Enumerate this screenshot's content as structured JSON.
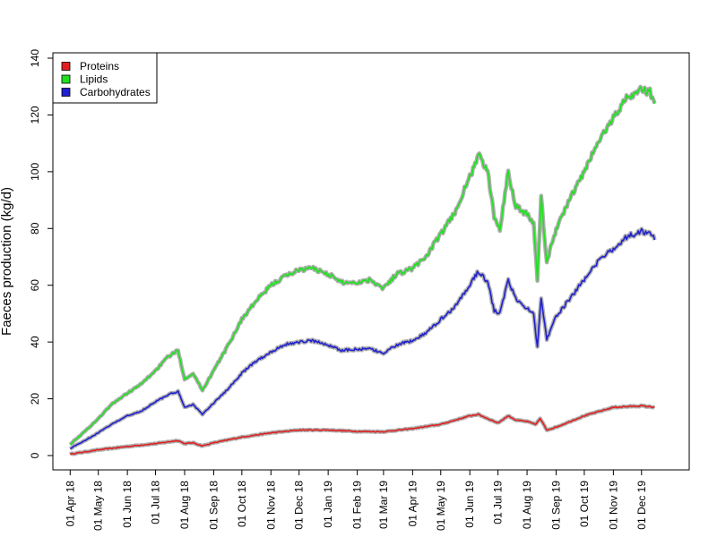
{
  "chart_data": {
    "type": "line",
    "title": "",
    "xlabel": "",
    "ylabel": "Faeces production (kg/d)",
    "ylim": [
      0,
      140
    ],
    "yticks": [
      0,
      20,
      40,
      60,
      80,
      100,
      120,
      140
    ],
    "xlim": [
      "2018-03-26",
      "2019-12-27"
    ],
    "xticks": [
      "01 Apr 18",
      "01 May 18",
      "01 Jun 18",
      "01 Jul 18",
      "01 Aug 18",
      "01 Sep 18",
      "01 Oct 18",
      "01 Nov 18",
      "01 Dec 18",
      "01 Jan 19",
      "01 Feb 19",
      "01 Mar 19",
      "01 Apr 19",
      "01 May 19",
      "01 Jun 19",
      "01 Jul 19",
      "01 Aug 19",
      "01 Sep 19",
      "01 Oct 19",
      "01 Nov 19",
      "01 Dec 19"
    ],
    "xtick_dates": [
      "2018-04-01",
      "2018-05-01",
      "2018-06-01",
      "2018-07-01",
      "2018-08-01",
      "2018-09-01",
      "2018-10-01",
      "2018-11-01",
      "2018-12-01",
      "2019-01-01",
      "2019-02-01",
      "2019-03-01",
      "2019-04-01",
      "2019-05-01",
      "2019-06-01",
      "2019-07-01",
      "2019-08-01",
      "2019-09-01",
      "2019-10-01",
      "2019-11-01",
      "2019-12-01"
    ],
    "legend_position": "top-left",
    "band_color": "#a0a0a0",
    "series": [
      {
        "name": "Proteins",
        "color": "#e02020",
        "points": [
          [
            "2018-04-01",
            0.5
          ],
          [
            "2018-05-01",
            2
          ],
          [
            "2018-06-01",
            3.2
          ],
          [
            "2018-07-01",
            4.2
          ],
          [
            "2018-07-25",
            5.3
          ],
          [
            "2018-08-01",
            4.2
          ],
          [
            "2018-08-10",
            4.5
          ],
          [
            "2018-08-20",
            3.4
          ],
          [
            "2018-09-01",
            4.5
          ],
          [
            "2018-10-01",
            6.5
          ],
          [
            "2018-11-01",
            8
          ],
          [
            "2018-12-01",
            9
          ],
          [
            "2019-01-01",
            9
          ],
          [
            "2019-02-01",
            8.5
          ],
          [
            "2019-03-01",
            8.4
          ],
          [
            "2019-04-01",
            9.5
          ],
          [
            "2019-05-01",
            11
          ],
          [
            "2019-06-01",
            14
          ],
          [
            "2019-06-10",
            14.5
          ],
          [
            "2019-06-20",
            13
          ],
          [
            "2019-07-01",
            11.5
          ],
          [
            "2019-07-12",
            14
          ],
          [
            "2019-07-20",
            12.5
          ],
          [
            "2019-08-01",
            12
          ],
          [
            "2019-08-10",
            11
          ],
          [
            "2019-08-15",
            13
          ],
          [
            "2019-08-22",
            9
          ],
          [
            "2019-09-01",
            10
          ],
          [
            "2019-10-01",
            14
          ],
          [
            "2019-11-01",
            17
          ],
          [
            "2019-12-01",
            17.5
          ],
          [
            "2019-12-15",
            17
          ]
        ]
      },
      {
        "name": "Lipids",
        "color": "#20e020",
        "points": [
          [
            "2018-04-01",
            4
          ],
          [
            "2018-04-15",
            8
          ],
          [
            "2018-05-01",
            13
          ],
          [
            "2018-05-15",
            18
          ],
          [
            "2018-06-01",
            22
          ],
          [
            "2018-06-15",
            25
          ],
          [
            "2018-07-01",
            30
          ],
          [
            "2018-07-15",
            35
          ],
          [
            "2018-07-25",
            37
          ],
          [
            "2018-08-01",
            27
          ],
          [
            "2018-08-10",
            29
          ],
          [
            "2018-08-20",
            23
          ],
          [
            "2018-09-01",
            30
          ],
          [
            "2018-09-15",
            38
          ],
          [
            "2018-10-01",
            48
          ],
          [
            "2018-10-15",
            54
          ],
          [
            "2018-11-01",
            60
          ],
          [
            "2018-11-15",
            63
          ],
          [
            "2018-12-01",
            65.5
          ],
          [
            "2018-12-15",
            66
          ],
          [
            "2019-01-01",
            64
          ],
          [
            "2019-01-15",
            61
          ],
          [
            "2019-02-01",
            61
          ],
          [
            "2019-02-15",
            62
          ],
          [
            "2019-03-01",
            59
          ],
          [
            "2019-03-15",
            64
          ],
          [
            "2019-04-01",
            66
          ],
          [
            "2019-04-15",
            70
          ],
          [
            "2019-05-01",
            78
          ],
          [
            "2019-05-15",
            85
          ],
          [
            "2019-06-01",
            98
          ],
          [
            "2019-06-10",
            106
          ],
          [
            "2019-06-20",
            100
          ],
          [
            "2019-06-27",
            84
          ],
          [
            "2019-07-03",
            80
          ],
          [
            "2019-07-12",
            100
          ],
          [
            "2019-07-20",
            88
          ],
          [
            "2019-08-01",
            85
          ],
          [
            "2019-08-08",
            82
          ],
          [
            "2019-08-12",
            62
          ],
          [
            "2019-08-16",
            91
          ],
          [
            "2019-08-22",
            68
          ],
          [
            "2019-09-01",
            80
          ],
          [
            "2019-09-15",
            90
          ],
          [
            "2019-10-01",
            100
          ],
          [
            "2019-10-15",
            110
          ],
          [
            "2019-11-01",
            119
          ],
          [
            "2019-11-15",
            126
          ],
          [
            "2019-12-01",
            129
          ],
          [
            "2019-12-10",
            128
          ],
          [
            "2019-12-15",
            124
          ]
        ]
      },
      {
        "name": "Carbohydrates",
        "color": "#2020d0",
        "points": [
          [
            "2018-04-01",
            2.5
          ],
          [
            "2018-04-15",
            5
          ],
          [
            "2018-05-01",
            8
          ],
          [
            "2018-05-15",
            11
          ],
          [
            "2018-06-01",
            14
          ],
          [
            "2018-06-15",
            15.5
          ],
          [
            "2018-07-01",
            19
          ],
          [
            "2018-07-15",
            21.5
          ],
          [
            "2018-07-25",
            22.5
          ],
          [
            "2018-08-01",
            17
          ],
          [
            "2018-08-10",
            18
          ],
          [
            "2018-08-20",
            14.5
          ],
          [
            "2018-09-01",
            18.5
          ],
          [
            "2018-09-15",
            23
          ],
          [
            "2018-10-01",
            29
          ],
          [
            "2018-10-15",
            33
          ],
          [
            "2018-11-01",
            36.5
          ],
          [
            "2018-11-15",
            39
          ],
          [
            "2018-12-01",
            40
          ],
          [
            "2018-12-15",
            40.5
          ],
          [
            "2019-01-01",
            39
          ],
          [
            "2019-01-15",
            37
          ],
          [
            "2019-02-01",
            37.5
          ],
          [
            "2019-02-15",
            37.5
          ],
          [
            "2019-03-01",
            36
          ],
          [
            "2019-03-15",
            39
          ],
          [
            "2019-04-01",
            40.5
          ],
          [
            "2019-04-15",
            43
          ],
          [
            "2019-05-01",
            48
          ],
          [
            "2019-05-15",
            52
          ],
          [
            "2019-06-01",
            60
          ],
          [
            "2019-06-10",
            65
          ],
          [
            "2019-06-20",
            61
          ],
          [
            "2019-06-27",
            51
          ],
          [
            "2019-07-03",
            50
          ],
          [
            "2019-07-12",
            62
          ],
          [
            "2019-07-20",
            55
          ],
          [
            "2019-08-01",
            52
          ],
          [
            "2019-08-08",
            50
          ],
          [
            "2019-08-12",
            38
          ],
          [
            "2019-08-16",
            56
          ],
          [
            "2019-08-22",
            41
          ],
          [
            "2019-09-01",
            49
          ],
          [
            "2019-09-15",
            55
          ],
          [
            "2019-10-01",
            62
          ],
          [
            "2019-10-15",
            68
          ],
          [
            "2019-11-01",
            73
          ],
          [
            "2019-11-15",
            77
          ],
          [
            "2019-12-01",
            79
          ],
          [
            "2019-12-10",
            78.5
          ],
          [
            "2019-12-15",
            76
          ]
        ]
      }
    ]
  }
}
